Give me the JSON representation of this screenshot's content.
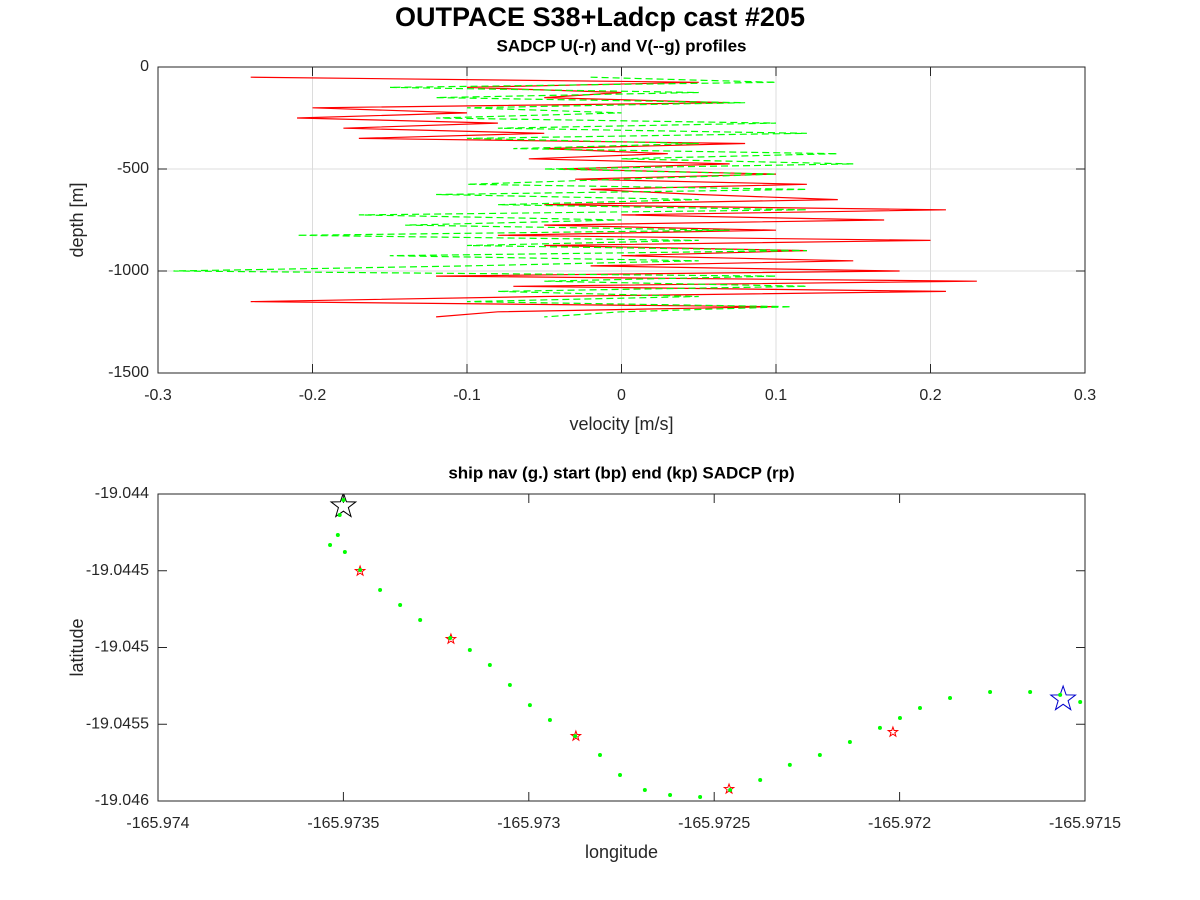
{
  "figure_title": "OUTPACE S38+Ladcp cast #205",
  "chart_data": [
    {
      "type": "line",
      "title": "SADCP U(-r) and V(--g) profiles",
      "xlabel": "velocity [m/s]",
      "ylabel": "depth [m]",
      "xlim": [
        -0.3,
        0.3
      ],
      "xticks": [
        -0.3,
        -0.2,
        -0.1,
        0,
        0.1,
        0.2,
        0.3
      ],
      "ylim": [
        -1500,
        0
      ],
      "yticks": [
        -1500,
        -1000,
        -500,
        0
      ],
      "grid": true,
      "y": [
        -50,
        -75,
        -100,
        -125,
        -150,
        -175,
        -200,
        -225,
        -250,
        -275,
        -300,
        -325,
        -350,
        -375,
        -400,
        -425,
        -450,
        -475,
        -500,
        -525,
        -550,
        -575,
        -600,
        -625,
        -650,
        -675,
        -700,
        -725,
        -750,
        -775,
        -800,
        -825,
        -850,
        -875,
        -900,
        -925,
        -950,
        -975,
        -1000,
        -1025,
        -1050,
        -1075,
        -1100,
        -1125,
        -1150,
        -1175,
        -1200,
        -1225
      ],
      "series": [
        {
          "color": "#ff0000",
          "style": "solid",
          "values": [
            -0.24,
            0.05,
            -0.1,
            0.0,
            -0.05,
            0.07,
            -0.2,
            -0.1,
            -0.21,
            -0.08,
            -0.18,
            -0.05,
            -0.17,
            0.08,
            -0.05,
            0.03,
            -0.06,
            0.07,
            -0.04,
            0.1,
            -0.03,
            0.12,
            -0.02,
            0.05,
            0.14,
            -0.05,
            0.21,
            0.0,
            0.17,
            -0.05,
            0.1,
            -0.08,
            0.2,
            -0.05,
            0.12,
            0.0,
            0.15,
            -0.02,
            0.18,
            -0.12,
            0.23,
            -0.07,
            0.21,
            -0.05,
            -0.24,
            0.1,
            -0.08,
            -0.12
          ]
        },
        {
          "color": "#00ff00",
          "style": "dashed",
          "values": [
            -0.02,
            0.1,
            -0.15,
            0.05,
            -0.12,
            0.08,
            -0.1,
            0.0,
            -0.12,
            0.1,
            -0.08,
            0.12,
            -0.1,
            0.05,
            -0.07,
            0.14,
            0.0,
            0.15,
            -0.05,
            0.1,
            0.0,
            -0.1,
            0.12,
            -0.12,
            0.05,
            -0.08,
            0.12,
            -0.17,
            0.0,
            -0.14,
            0.07,
            -0.21,
            0.05,
            -0.1,
            0.12,
            -0.15,
            0.05,
            -0.1,
            -0.29,
            0.1,
            -0.05,
            0.12,
            -0.08,
            0.05,
            -0.1,
            0.11,
            0.0,
            -0.05
          ]
        }
      ]
    },
    {
      "type": "scatter",
      "title": "ship nav (g.) start (bp) end (kp) SADCP (rp)",
      "xlabel": "longitude",
      "ylabel": "latitude",
      "xlim": [
        -165.974,
        -165.9715
      ],
      "xticks": [
        -165.974,
        -165.9735,
        -165.973,
        -165.9725,
        -165.972,
        -165.9715
      ],
      "ylim": [
        -19.046,
        -19.044
      ],
      "yticks": [
        -19.046,
        -19.0455,
        -19.045,
        -19.0445,
        -19.044
      ],
      "grid": false,
      "series": [
        {
          "color": "#ff0000",
          "marker": "star",
          "size": 5,
          "x": [
            -165.973455,
            -165.97321,
            -165.972873,
            -165.97246,
            -165.972018
          ],
          "values": [
            -19.044502,
            -19.044945,
            -19.045577,
            -19.045922,
            -19.045551
          ]
        },
        {
          "color": "#000000",
          "marker": "star",
          "size": 13,
          "x": [
            -165.9735
          ],
          "values": [
            -19.044078
          ]
        },
        {
          "color": "#0000cc",
          "marker": "star",
          "size": 13,
          "x": [
            -165.971559
          ],
          "values": [
            -19.045336
          ]
        },
        {
          "color": "#00ff00",
          "marker": "dot",
          "size": 2,
          "x": [
            -165.9735,
            -165.97351,
            -165.973515,
            -165.973536,
            -165.973496,
            -165.973455,
            -165.973401,
            -165.973347,
            -165.973293,
            -165.973212,
            -165.973159,
            -165.973105,
            -165.973051,
            -165.972997,
            -165.972943,
            -165.972875,
            -165.972808,
            -165.972754,
            -165.972687,
            -165.972619,
            -165.972538,
            -165.972457,
            -165.972376,
            -165.972296,
            -165.972215,
            -165.972134,
            -165.972053,
            -165.971999,
            -165.971945,
            -165.971864,
            -165.971756,
            -165.971648,
            -165.971567,
            -165.971513
          ],
          "values": [
            -19.044039,
            -19.044137,
            -19.044267,
            -19.044332,
            -19.044378,
            -19.044495,
            -19.044625,
            -19.044723,
            -19.044821,
            -19.044938,
            -19.045016,
            -19.045114,
            -19.045244,
            -19.045375,
            -19.045472,
            -19.045577,
            -19.0457,
            -19.045831,
            -19.045928,
            -19.045961,
            -19.045974,
            -19.045928,
            -19.045863,
            -19.045765,
            -19.0457,
            -19.045616,
            -19.045524,
            -19.045459,
            -19.045394,
            -19.045329,
            -19.04529,
            -19.04529,
            -19.045309,
            -19.045355
          ]
        }
      ]
    }
  ]
}
